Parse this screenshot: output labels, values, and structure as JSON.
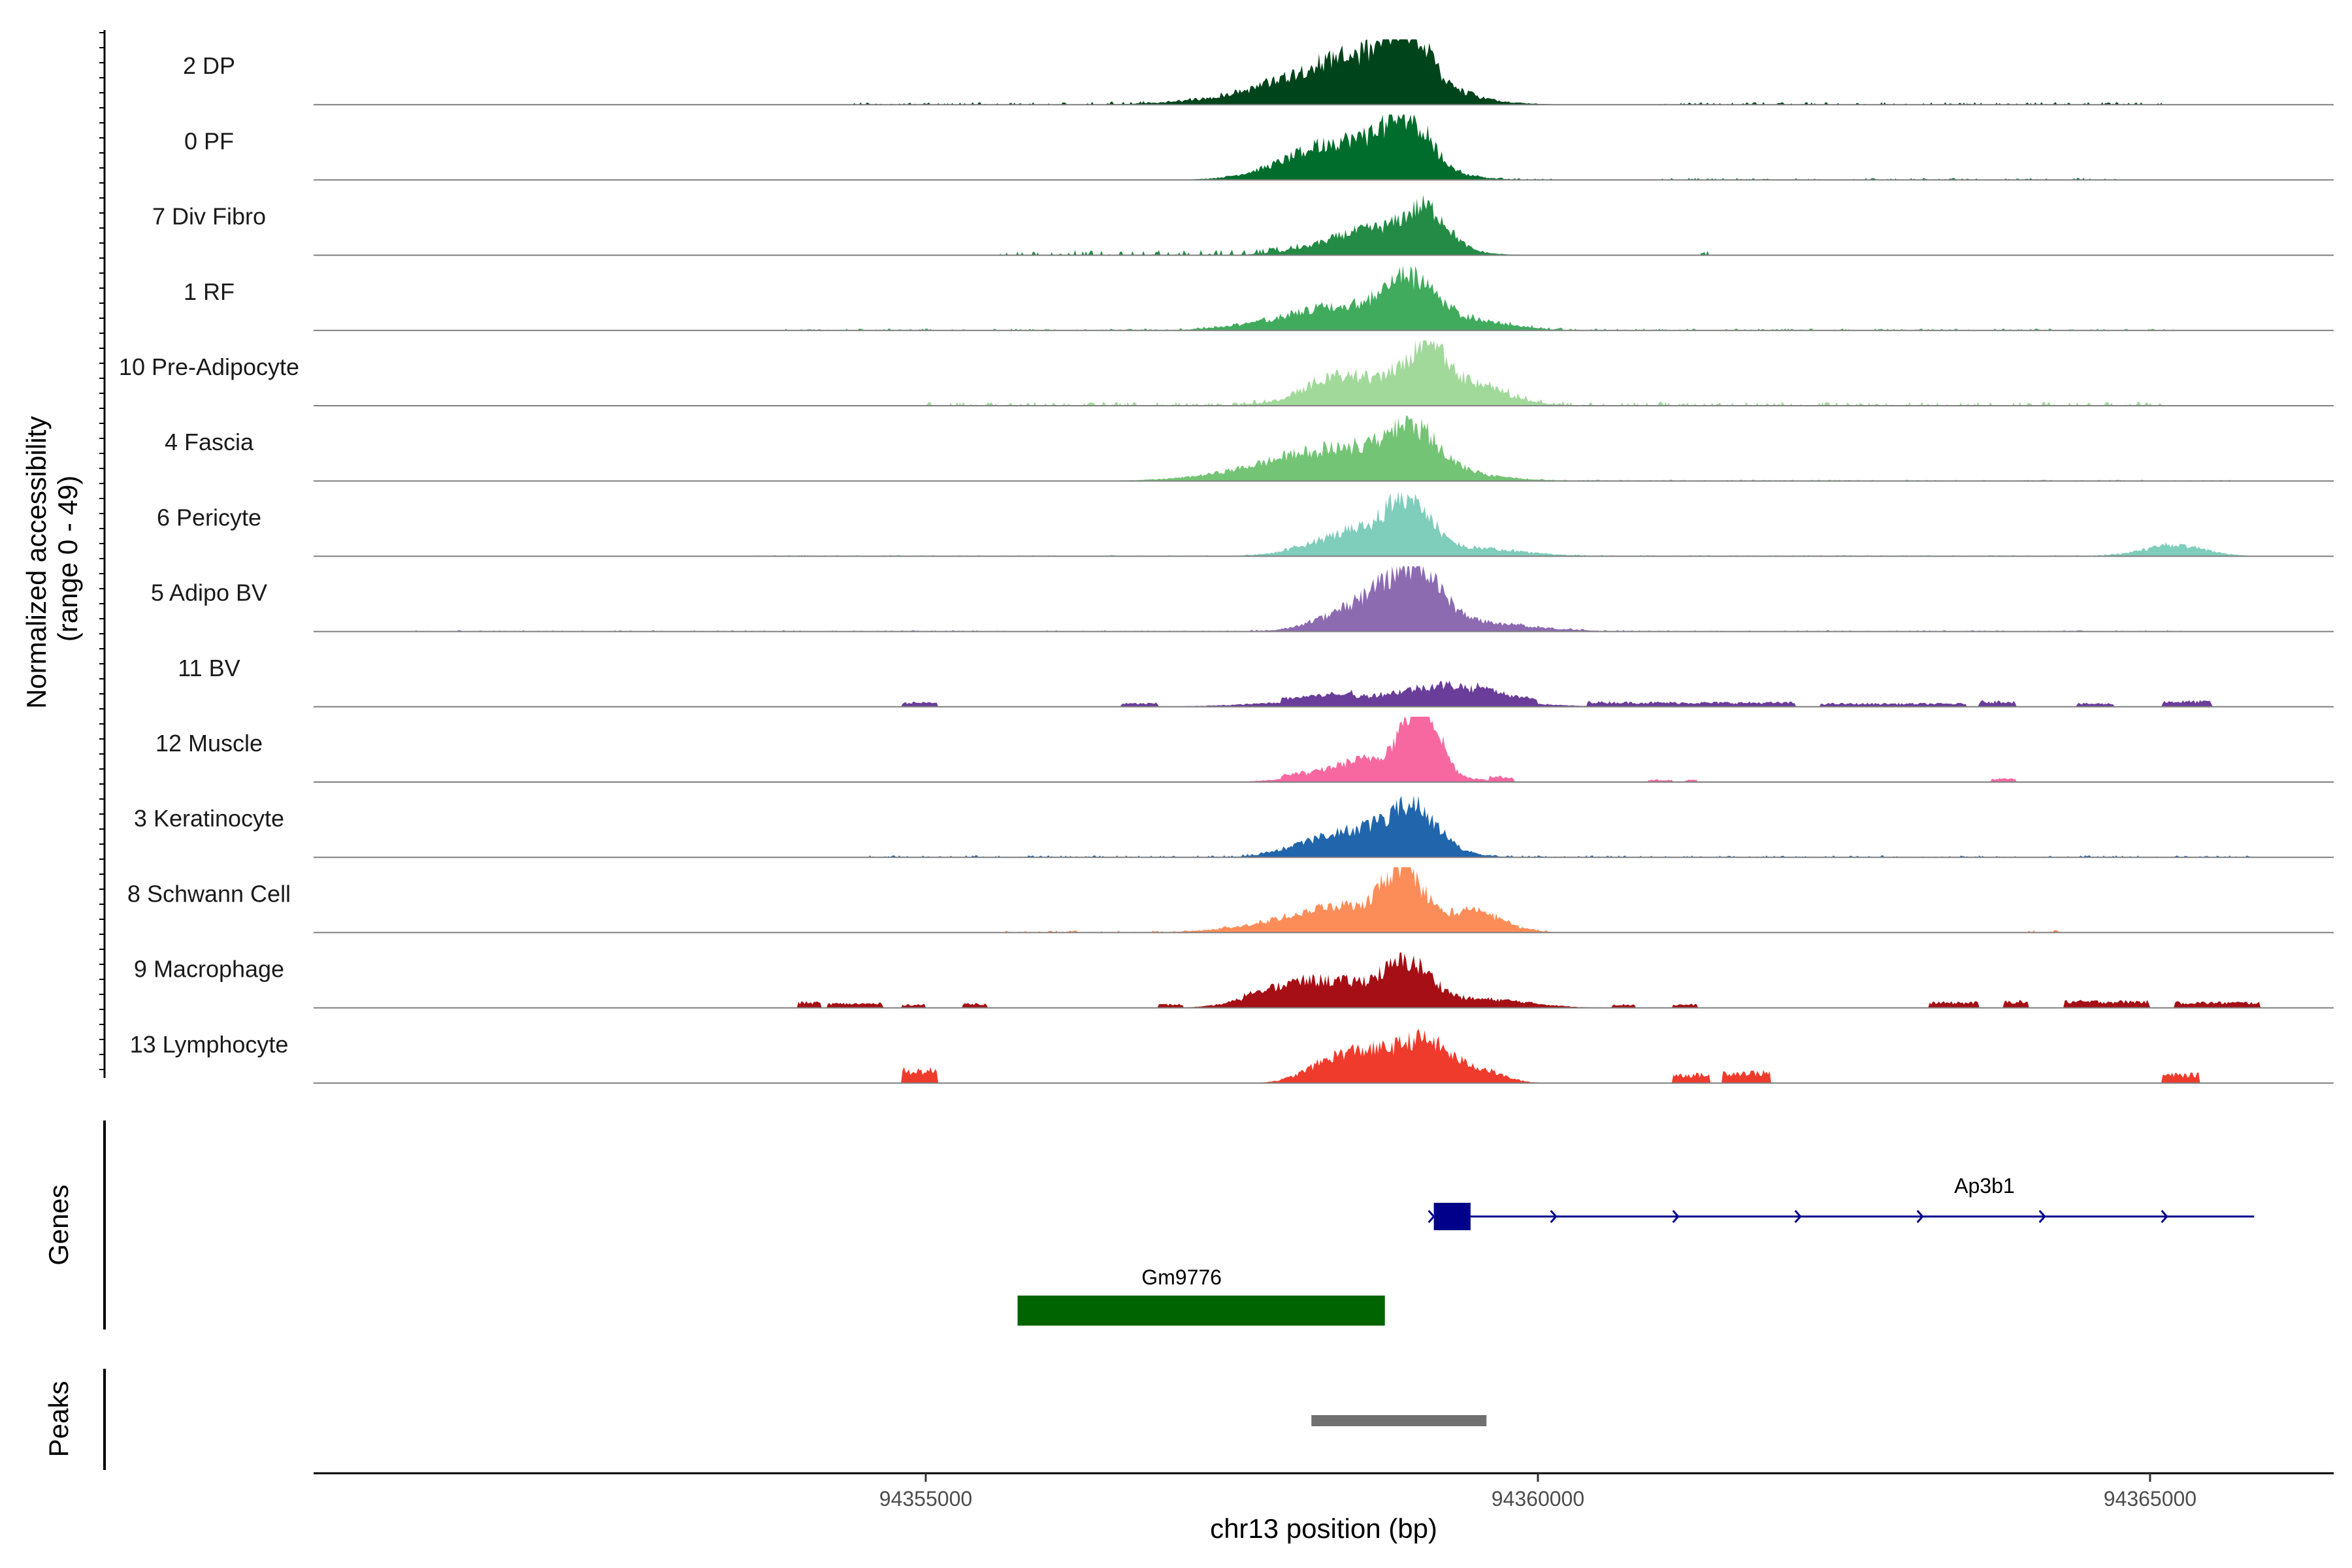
{
  "chart_data": {
    "type": "area",
    "title": "",
    "chromosome": "chr13",
    "xlabel": "chr13 position (bp)",
    "ylabel": "Normalized accessibility\n(range 0 - 49)",
    "ylabel_line1": "Normalized accessibility",
    "ylabel_line2": "(range 0 - 49)",
    "y_range": [
      0,
      49
    ],
    "xlim": [
      94350000,
      94366500
    ],
    "x_ticks": [
      94355000,
      94360000,
      94365000
    ],
    "x_tick_labels": [
      "94355000",
      "94360000",
      "94365000"
    ],
    "tracks": [
      {
        "name": "2 DP",
        "color": "#00441b",
        "peaks": [
          [
            94358600,
            480,
            26
          ],
          [
            94358950,
            160,
            30
          ],
          [
            94358250,
            650,
            12
          ]
        ],
        "noise": [
          [
            94354400,
            94359500,
            2
          ],
          [
            94361000,
            94365100,
            2
          ]
        ],
        "islands": []
      },
      {
        "name": "0 PF",
        "color": "#006d2c",
        "peaks": [
          [
            94358600,
            420,
            24
          ],
          [
            94358950,
            170,
            30
          ],
          [
            94358150,
            380,
            10
          ]
        ],
        "noise": [
          [
            94358000,
            94360200,
            1
          ],
          [
            94361000,
            94364800,
            1.5
          ]
        ],
        "islands": []
      },
      {
        "name": "7 Div Fibro",
        "color": "#238b45",
        "peaks": [
          [
            94358700,
            400,
            20
          ],
          [
            94359100,
            160,
            24
          ]
        ],
        "noise": [
          [
            94355600,
            94358300,
            4
          ],
          [
            94361300,
            94361400,
            4
          ]
        ],
        "islands": []
      },
      {
        "name": "1 RF",
        "color": "#41ab5d",
        "peaks": [
          [
            94358450,
            520,
            18
          ],
          [
            94358950,
            190,
            27
          ],
          [
            94359400,
            350,
            6
          ]
        ],
        "noise": [
          [
            94353700,
            94365200,
            1.5
          ]
        ],
        "islands": []
      },
      {
        "name": "10 Pre-Adipocyte",
        "color": "#a1d99b",
        "peaks": [
          [
            94358850,
            500,
            20
          ],
          [
            94359100,
            140,
            28
          ],
          [
            94358300,
            220,
            10
          ],
          [
            94359500,
            240,
            8
          ]
        ],
        "noise": [
          [
            94355000,
            94365100,
            3
          ]
        ],
        "islands": []
      },
      {
        "name": "4 Fascia",
        "color": "#74c476",
        "peaks": [
          [
            94358500,
            600,
            22
          ],
          [
            94359000,
            190,
            25
          ],
          [
            94358000,
            600,
            4
          ]
        ],
        "noise": [
          [
            94357900,
            94365700,
            1
          ]
        ],
        "islands": []
      },
      {
        "name": "6 Pericyte",
        "color": "#7fcdbb",
        "peaks": [
          [
            94358600,
            380,
            20
          ],
          [
            94358950,
            160,
            32
          ],
          [
            94359500,
            400,
            5
          ],
          [
            94365200,
            250,
            8
          ]
        ],
        "noise": [
          [
            94353600,
            94365300,
            1
          ]
        ],
        "islands": []
      },
      {
        "name": "5 Adipo BV",
        "color": "#8c6bb1",
        "peaks": [
          [
            94358700,
            350,
            24
          ],
          [
            94359000,
            200,
            30
          ],
          [
            94359500,
            450,
            6
          ]
        ],
        "noise": [
          [
            94350800,
            94365300,
            1
          ]
        ],
        "islands": []
      },
      {
        "name": "11 BV",
        "color": "#6a3d9a",
        "peaks": [
          [
            94358800,
            700,
            8
          ],
          [
            94359300,
            300,
            10
          ]
        ],
        "noise": [],
        "islands": [
          [
            94354800,
            94355100,
            4
          ],
          [
            94356600,
            94356900,
            3
          ],
          [
            94357900,
            94358500,
            4
          ],
          [
            94359500,
            94360000,
            4
          ],
          [
            94360400,
            94362100,
            4
          ],
          [
            94362300,
            94363500,
            3
          ],
          [
            94363600,
            94363900,
            5
          ],
          [
            94364400,
            94364700,
            3
          ],
          [
            94365100,
            94365500,
            5
          ]
        ]
      },
      {
        "name": "12 Muscle",
        "color": "#f768a1",
        "peaks": [
          [
            94358700,
            400,
            18
          ],
          [
            94359000,
            120,
            40
          ],
          [
            94359150,
            100,
            20
          ]
        ],
        "noise": [],
        "islands": [
          [
            94357900,
            94358100,
            3
          ],
          [
            94359600,
            94359800,
            4
          ],
          [
            94360900,
            94361100,
            2
          ],
          [
            94361200,
            94361300,
            2
          ],
          [
            94363700,
            94363900,
            3
          ]
        ]
      },
      {
        "name": "3 Keratinocyte",
        "color": "#2166ac",
        "peaks": [
          [
            94358700,
            380,
            20
          ],
          [
            94359000,
            180,
            24
          ],
          [
            94358200,
            280,
            6
          ]
        ],
        "noise": [
          [
            94354500,
            94365900,
            1.5
          ]
        ],
        "islands": []
      },
      {
        "name": "8 Schwann Cell",
        "color": "#fc8d59",
        "peaks": [
          [
            94358500,
            550,
            20
          ],
          [
            94358900,
            140,
            38
          ],
          [
            94359500,
            220,
            12
          ]
        ],
        "noise": [
          [
            94355500,
            94360100,
            1.5
          ],
          [
            94363900,
            94364300,
            2
          ]
        ],
        "islands": []
      },
      {
        "name": "9 Macrophage",
        "color": "#a50f15",
        "peaks": [
          [
            94358400,
            420,
            18
          ],
          [
            94358950,
            190,
            26
          ],
          [
            94357900,
            280,
            8
          ],
          [
            94359600,
            350,
            6
          ]
        ],
        "noise": [],
        "islands": [
          [
            94353950,
            94354150,
            5
          ],
          [
            94354200,
            94354650,
            4
          ],
          [
            94354800,
            94355000,
            3
          ],
          [
            94355300,
            94355500,
            4
          ],
          [
            94356900,
            94357100,
            3
          ],
          [
            94357600,
            94357800,
            3
          ],
          [
            94360600,
            94360800,
            3
          ],
          [
            94361100,
            94361300,
            3
          ],
          [
            94363200,
            94363600,
            5
          ],
          [
            94363800,
            94364000,
            6
          ],
          [
            94364300,
            94365000,
            6
          ],
          [
            94365200,
            94365900,
            5
          ]
        ]
      },
      {
        "name": "13 Lymphocyte",
        "color": "#ef3b2c",
        "peaks": [
          [
            94358700,
            300,
            22
          ],
          [
            94359100,
            180,
            22
          ],
          [
            94358300,
            220,
            10
          ],
          [
            94359500,
            200,
            10
          ]
        ],
        "noise": [],
        "islands": [
          [
            94354800,
            94355100,
            12
          ],
          [
            94361100,
            94361400,
            8
          ],
          [
            94361500,
            94361900,
            10
          ],
          [
            94365100,
            94365400,
            8
          ]
        ]
      }
    ],
    "genes": [
      {
        "name": "Ap3b1",
        "start": 94359150,
        "end": 94365850,
        "strand": "+",
        "color": "#00008b",
        "exons": [
          [
            94359150,
            94359450
          ]
        ]
      },
      {
        "name": "Gm9776",
        "start": 94355750,
        "end": 94358750,
        "strand": "",
        "color": "#006400",
        "exons": [
          [
            94355750,
            94358750
          ]
        ]
      }
    ],
    "peaks_track": [
      {
        "start": 94358150,
        "end": 94359580,
        "color": "#707070"
      }
    ],
    "panel_labels": {
      "genes": "Genes",
      "peaks": "Peaks"
    }
  }
}
